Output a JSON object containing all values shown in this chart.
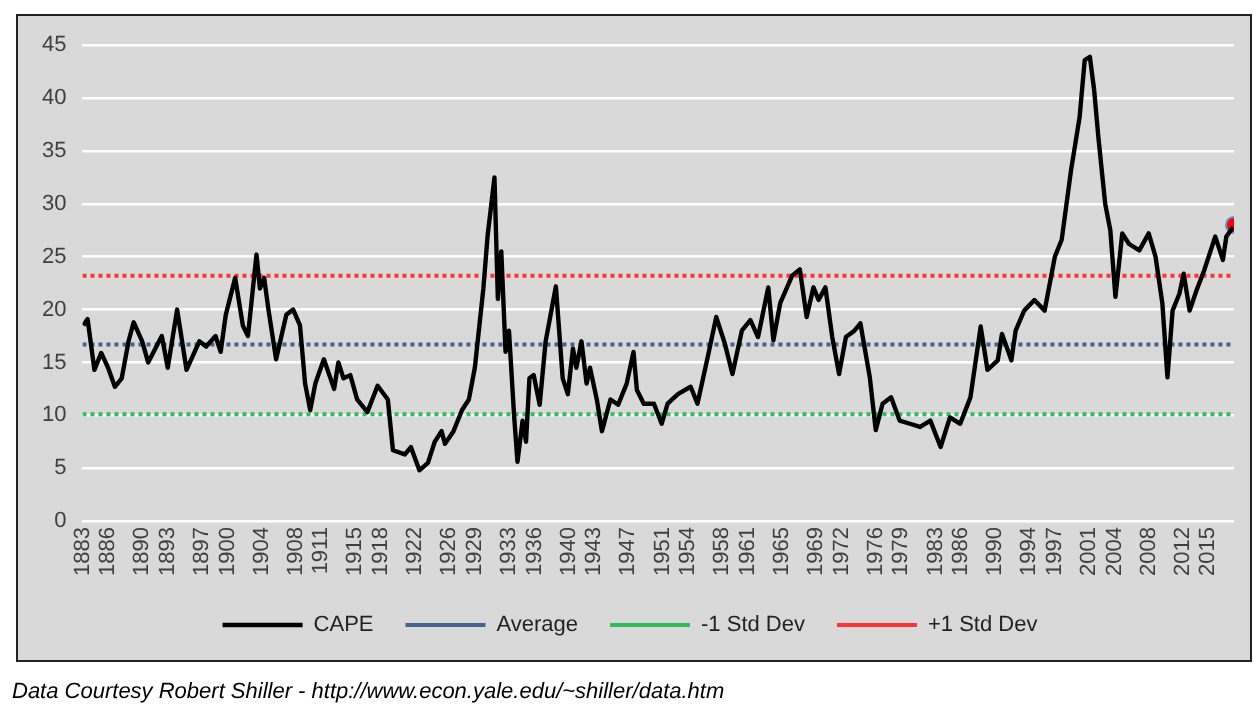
{
  "chart_data": {
    "type": "line",
    "annotations": [
      "Data Courtesy Robert Shiller - http://www.econ.yale.edu/~shiller/data.htm"
    ],
    "xlim": [
      1883,
      2018
    ],
    "xticks": [
      1883,
      1886,
      1890,
      1893,
      1897,
      1900,
      1904,
      1908,
      1911,
      1915,
      1918,
      1922,
      1926,
      1929,
      1933,
      1936,
      1940,
      1943,
      1947,
      1951,
      1954,
      1958,
      1961,
      1965,
      1969,
      1972,
      1976,
      1979,
      1983,
      1986,
      1990,
      1994,
      1997,
      2001,
      2004,
      2008,
      2012,
      2015
    ],
    "ylim": [
      0,
      45
    ],
    "yticks": [
      0,
      5,
      10,
      15,
      20,
      25,
      30,
      35,
      40,
      45
    ],
    "grid": "y",
    "legend": "bottom",
    "marker": "none",
    "line_style": "solid",
    "series": [
      {
        "name": "CAPE",
        "color": "#000000",
        "x": [
          1883.1,
          1883.6,
          1884.4,
          1885.2,
          1886.0,
          1886.8,
          1887.6,
          1888.4,
          1889.0,
          1890.0,
          1890.7,
          1892.3,
          1893.0,
          1894.1,
          1895.2,
          1896.7,
          1897.5,
          1898.6,
          1899.2,
          1899.8,
          1900.9,
          1901.8,
          1902.4,
          1903.4,
          1903.8,
          1904.3,
          1904.8,
          1905.7,
          1906.9,
          1907.7,
          1908.5,
          1909.1,
          1909.7,
          1910.3,
          1911.3,
          1912.5,
          1913.0,
          1913.6,
          1914.4,
          1915.2,
          1916.4,
          1917.6,
          1918.8,
          1919.4,
          1920.8,
          1921.5,
          1922.5,
          1923.5,
          1924.3,
          1925.1,
          1925.5,
          1926.5,
          1927.5,
          1928.3,
          1929.0,
          1930.0,
          1930.5,
          1931.3,
          1931.7,
          1932.1,
          1932.6,
          1933.0,
          1933.6,
          1934.0,
          1934.6,
          1935.0,
          1935.4,
          1935.9,
          1936.6,
          1937.3,
          1938.5,
          1939.3,
          1939.9,
          1940.5,
          1940.9,
          1941.5,
          1942.1,
          1942.5,
          1943.3,
          1943.9,
          1944.9,
          1945.8,
          1946.8,
          1947.6,
          1948.0,
          1948.8,
          1950.0,
          1950.9,
          1951.6,
          1952.8,
          1954.3,
          1955.1,
          1956.3,
          1957.3,
          1958.3,
          1959.2,
          1960.3,
          1961.3,
          1962.2,
          1963.4,
          1964.0,
          1964.8,
          1966.2,
          1967.1,
          1967.9,
          1968.7,
          1969.3,
          1970.1,
          1970.9,
          1971.7,
          1972.5,
          1973.5,
          1974.2,
          1975.3,
          1976.0,
          1976.8,
          1977.8,
          1978.8,
          1980.0,
          1981.2,
          1982.4,
          1983.6,
          1984.7,
          1985.9,
          1987.1,
          1988.3,
          1989.1,
          1990.3,
          1990.8,
          1991.9,
          1992.4,
          1993.4,
          1994.6,
          1995.8,
          1997.0,
          1997.8,
          1998.9,
          1999.9,
          2000.5,
          2001.1,
          2001.6,
          2002.1,
          2002.9,
          2003.5,
          2004.1,
          2004.9,
          2005.7,
          2006.9,
          2008.0,
          2008.8,
          2009.6,
          2010.2,
          2010.8,
          2011.6,
          2012.1,
          2012.8,
          2013.6,
          2014.5,
          2015.8,
          2016.7,
          2017.1,
          2017.9
        ],
        "values": [
          18.5,
          19.1,
          14.3,
          15.9,
          14.5,
          12.7,
          13.5,
          17.0,
          18.8,
          17.0,
          15.0,
          17.5,
          14.5,
          20.0,
          14.3,
          17.0,
          16.5,
          17.5,
          16.0,
          19.5,
          23.0,
          18.5,
          17.5,
          25.2,
          22.0,
          23.0,
          20.0,
          15.3,
          19.5,
          20.0,
          18.5,
          13.0,
          10.5,
          13.0,
          15.3,
          12.5,
          15.0,
          13.5,
          13.8,
          11.5,
          10.3,
          12.8,
          11.5,
          6.7,
          6.3,
          7.0,
          4.8,
          5.5,
          7.5,
          8.5,
          7.3,
          8.5,
          10.5,
          11.5,
          14.5,
          22.0,
          27.0,
          32.5,
          21.0,
          25.5,
          16.0,
          18.0,
          10.0,
          5.6,
          9.5,
          7.5,
          13.5,
          13.8,
          11.0,
          17.0,
          22.2,
          13.5,
          12.0,
          16.3,
          14.5,
          17.0,
          13.0,
          14.5,
          11.5,
          8.5,
          11.5,
          11.0,
          13.0,
          16.0,
          12.4,
          11.1,
          11.1,
          9.2,
          11.1,
          12.0,
          12.7,
          11.1,
          15.5,
          19.3,
          16.8,
          13.9,
          18.0,
          19.0,
          17.4,
          22.1,
          17.1,
          20.6,
          23.2,
          23.8,
          19.3,
          22.1,
          20.9,
          22.1,
          17.4,
          13.9,
          17.4,
          18.0,
          18.7,
          13.6,
          8.6,
          11.1,
          11.7,
          9.5,
          9.2,
          8.9,
          9.5,
          7.0,
          9.8,
          9.2,
          11.7,
          18.4,
          14.3,
          15.2,
          17.7,
          15.2,
          18.0,
          19.9,
          20.9,
          19.9,
          25.0,
          26.6,
          33.2,
          38.2,
          43.6,
          43.9,
          40.8,
          36.3,
          30.0,
          27.5,
          21.2,
          27.2,
          26.2,
          25.6,
          27.2,
          25.0,
          20.6,
          13.6,
          19.9,
          21.5,
          23.4,
          19.9,
          21.8,
          23.7,
          26.9,
          24.7,
          26.9,
          27.8
        ]
      },
      {
        "type": "scatter",
        "marker": "circle",
        "color": "#ff0000",
        "x": [
          2018.0
        ],
        "values": [
          28.0
        ]
      }
    ],
    "ref_lines": [
      {
        "axis": "y",
        "value": 16.7,
        "label": "Average",
        "color": "#44638f",
        "line_style": "dotted"
      },
      {
        "axis": "y",
        "value": 10.1,
        "label": "-1 Std Dev",
        "color": "#2dbd5a",
        "line_style": "dotted"
      },
      {
        "axis": "y",
        "value": 23.2,
        "label": "+1 Std Dev",
        "color": "#ff3333",
        "line_style": "dotted"
      }
    ]
  }
}
